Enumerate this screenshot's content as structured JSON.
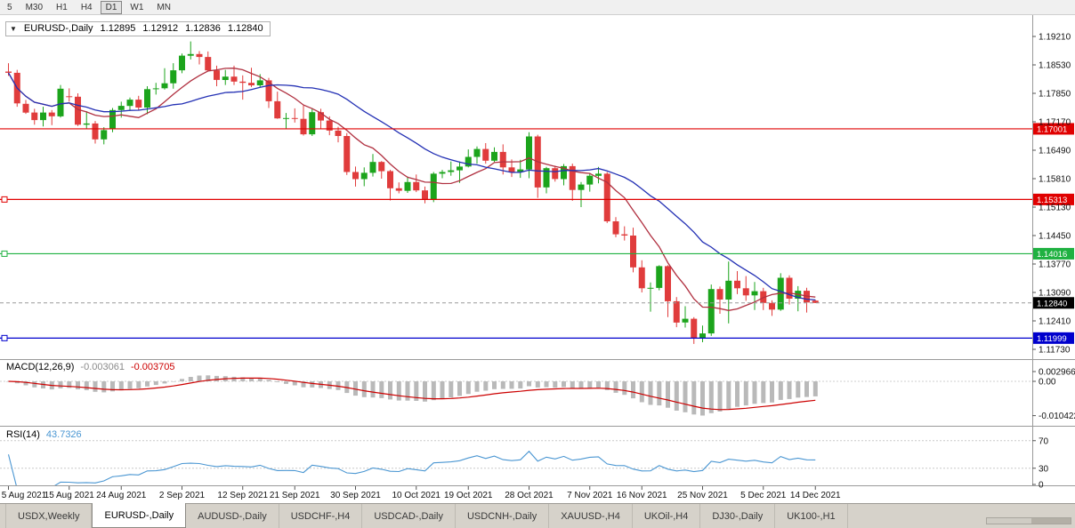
{
  "toolbar": {
    "timeframes": [
      {
        "label": "5",
        "active": false
      },
      {
        "label": "M30",
        "active": false
      },
      {
        "label": "H1",
        "active": false
      },
      {
        "label": "H4",
        "active": false
      },
      {
        "label": "D1",
        "active": true
      },
      {
        "label": "W1",
        "active": false
      },
      {
        "label": "MN",
        "active": false
      }
    ]
  },
  "chart_header": {
    "collapse_icon": "▼",
    "symbol": "EURUSD-,Daily",
    "open": "1.12895",
    "high": "1.12912",
    "low": "1.12836",
    "close": "1.12840"
  },
  "colors": {
    "candle_up": "#1ca41c",
    "candle_down": "#e03c3c",
    "macd_histogram": "#b9b9b9",
    "macd_signal": "#cc0000",
    "rsi_line": "#4a96d2",
    "axis_text": "#111111",
    "current_price_bg": "#000000"
  },
  "chart_data": {
    "type": "candlestick",
    "symbol": "EURUSD-,Daily",
    "candles": [
      [
        1.1837,
        1.1857,
        1.1827,
        1.1834
      ],
      [
        1.1834,
        1.1841,
        1.1753,
        1.1761
      ],
      [
        1.176,
        1.1769,
        1.1736,
        1.1739
      ],
      [
        1.1739,
        1.1748,
        1.171,
        1.1721
      ],
      [
        1.1721,
        1.1753,
        1.1706,
        1.1739
      ],
      [
        1.1739,
        1.1745,
        1.1709,
        1.173
      ],
      [
        1.173,
        1.1805,
        1.1727,
        1.1796
      ],
      [
        1.1778,
        1.1797,
        1.1765,
        1.1777
      ],
      [
        1.1777,
        1.1785,
        1.1707,
        1.171
      ],
      [
        1.171,
        1.1742,
        1.1701,
        1.1713
      ],
      [
        1.1713,
        1.1719,
        1.1665,
        1.1675
      ],
      [
        1.1675,
        1.1704,
        1.1663,
        1.1697
      ],
      [
        1.17,
        1.175,
        1.1692,
        1.1745
      ],
      [
        1.1745,
        1.1765,
        1.1727,
        1.1755
      ],
      [
        1.1755,
        1.1775,
        1.1743,
        1.177
      ],
      [
        1.177,
        1.1779,
        1.1745,
        1.1751
      ],
      [
        1.1751,
        1.1802,
        1.1735,
        1.1795
      ],
      [
        1.1795,
        1.181,
        1.1782,
        1.1797
      ],
      [
        1.1797,
        1.1845,
        1.1794,
        1.1809
      ],
      [
        1.1809,
        1.1857,
        1.1796,
        1.184
      ],
      [
        1.184,
        1.188,
        1.1833,
        1.1875
      ],
      [
        1.1875,
        1.1909,
        1.1866,
        1.1879
      ],
      [
        1.1879,
        1.1886,
        1.1854,
        1.1872
      ],
      [
        1.1872,
        1.1885,
        1.1837,
        1.184
      ],
      [
        1.184,
        1.1851,
        1.1802,
        1.1817
      ],
      [
        1.1817,
        1.1841,
        1.1805,
        1.1825
      ],
      [
        1.1825,
        1.1851,
        1.1805,
        1.1813
      ],
      [
        1.1813,
        1.1828,
        1.177,
        1.181
      ],
      [
        1.181,
        1.1846,
        1.18,
        1.1804
      ],
      [
        1.1804,
        1.1831,
        1.1799,
        1.1816
      ],
      [
        1.1816,
        1.1822,
        1.175,
        1.1766
      ],
      [
        1.1766,
        1.1789,
        1.1724,
        1.1725
      ],
      [
        1.1725,
        1.1738,
        1.17,
        1.1726
      ],
      [
        1.1726,
        1.1749,
        1.1715,
        1.1724
      ],
      [
        1.1724,
        1.1756,
        1.1684,
        1.1687
      ],
      [
        1.1687,
        1.175,
        1.1683,
        1.174
      ],
      [
        1.174,
        1.1748,
        1.1701,
        1.172
      ],
      [
        1.172,
        1.173,
        1.1685,
        1.1696
      ],
      [
        1.1696,
        1.1705,
        1.1668,
        1.1683
      ],
      [
        1.1683,
        1.169,
        1.159,
        1.1597
      ],
      [
        1.1597,
        1.161,
        1.1562,
        1.158
      ],
      [
        1.158,
        1.1608,
        1.1563,
        1.1595
      ],
      [
        1.1595,
        1.164,
        1.1586,
        1.1621
      ],
      [
        1.1621,
        1.1623,
        1.1581,
        1.1599
      ],
      [
        1.1599,
        1.1602,
        1.1529,
        1.1558
      ],
      [
        1.1558,
        1.1572,
        1.1546,
        1.1552
      ],
      [
        1.1552,
        1.1586,
        1.1547,
        1.1573
      ],
      [
        1.1573,
        1.1591,
        1.1549,
        1.1553
      ],
      [
        1.1553,
        1.1562,
        1.1522,
        1.153
      ],
      [
        1.153,
        1.1597,
        1.1525,
        1.1593
      ],
      [
        1.1593,
        1.1602,
        1.1582,
        1.1597
      ],
      [
        1.1597,
        1.1622,
        1.1588,
        1.1601
      ],
      [
        1.1601,
        1.1622,
        1.1571,
        1.161
      ],
      [
        1.161,
        1.1651,
        1.1608,
        1.1633
      ],
      [
        1.1633,
        1.1658,
        1.1617,
        1.1652
      ],
      [
        1.1652,
        1.1666,
        1.1617,
        1.1624
      ],
      [
        1.1624,
        1.1656,
        1.1621,
        1.1645
      ],
      [
        1.1645,
        1.1663,
        1.1591,
        1.1608
      ],
      [
        1.1608,
        1.1627,
        1.1585,
        1.1597
      ],
      [
        1.1597,
        1.1626,
        1.1583,
        1.1603
      ],
      [
        1.1603,
        1.1692,
        1.1582,
        1.1682
      ],
      [
        1.1682,
        1.1686,
        1.1535,
        1.156
      ],
      [
        1.156,
        1.1609,
        1.1546,
        1.1606
      ],
      [
        1.1606,
        1.1612,
        1.1574,
        1.158
      ],
      [
        1.158,
        1.1616,
        1.1565,
        1.1611
      ],
      [
        1.1611,
        1.1617,
        1.1528,
        1.1554
      ],
      [
        1.1554,
        1.1573,
        1.1513,
        1.1567
      ],
      [
        1.1567,
        1.1594,
        1.155,
        1.1588
      ],
      [
        1.1588,
        1.1609,
        1.157,
        1.1593
      ],
      [
        1.1593,
        1.1597,
        1.1475,
        1.1479
      ],
      [
        1.1479,
        1.1489,
        1.1441,
        1.1448
      ],
      [
        1.1448,
        1.1467,
        1.1433,
        1.1445
      ],
      [
        1.1445,
        1.1464,
        1.1357,
        1.1369
      ],
      [
        1.1369,
        1.1386,
        1.1309,
        1.1319
      ],
      [
        1.1319,
        1.1333,
        1.1263,
        1.132
      ],
      [
        1.132,
        1.1374,
        1.1314,
        1.1372
      ],
      [
        1.1372,
        1.1374,
        1.125,
        1.1288
      ],
      [
        1.1288,
        1.1298,
        1.1226,
        1.1237
      ],
      [
        1.1237,
        1.1276,
        1.1225,
        1.1246
      ],
      [
        1.1246,
        1.125,
        1.1186,
        1.1199
      ],
      [
        1.1199,
        1.123,
        1.119,
        1.1211
      ],
      [
        1.1211,
        1.1328,
        1.1205,
        1.1317
      ],
      [
        1.1317,
        1.1323,
        1.1258,
        1.1292
      ],
      [
        1.1292,
        1.1383,
        1.1235,
        1.1337
      ],
      [
        1.1337,
        1.136,
        1.1305,
        1.1319
      ],
      [
        1.1319,
        1.1348,
        1.1289,
        1.1302
      ],
      [
        1.1302,
        1.1334,
        1.1267,
        1.1312
      ],
      [
        1.1312,
        1.132,
        1.1267,
        1.1284
      ],
      [
        1.1284,
        1.129,
        1.1253,
        1.1268
      ],
      [
        1.1268,
        1.1355,
        1.1265,
        1.1344
      ],
      [
        1.1344,
        1.135,
        1.128,
        1.1294
      ],
      [
        1.1294,
        1.1324,
        1.1264,
        1.1313
      ],
      [
        1.1313,
        1.132,
        1.1261,
        1.1285
      ],
      [
        1.12895,
        1.12912,
        1.12836,
        1.1284
      ]
    ],
    "price_axis_ticks": [
      "1.19210",
      "1.18530",
      "1.17850",
      "1.17170",
      "1.16490",
      "1.15810",
      "1.15130",
      "1.14450",
      "1.13770",
      "1.13090",
      "1.12410",
      "1.11730"
    ],
    "horizontal_lines": [
      {
        "price": 1.17001,
        "label": "1.17001",
        "color": "#e00000",
        "handle": false
      },
      {
        "price": 1.15313,
        "label": "1.15313",
        "color": "#e00000",
        "handle": true
      },
      {
        "price": 1.14016,
        "label": "1.14016",
        "color": "#1fb141",
        "handle": true
      },
      {
        "price": 1.11999,
        "label": "1.11999",
        "color": "#0000cd",
        "handle": true
      }
    ],
    "current_price": {
      "value": 1.1284,
      "label": "1.12840"
    },
    "moving_averages": [
      {
        "name": "ma-fast",
        "period": 8,
        "color": "#b03040"
      },
      {
        "name": "ma-slow",
        "period": 20,
        "color": "#2330b4"
      }
    ],
    "macd": {
      "title": "MACD(12,26,9)",
      "fast": 12,
      "slow": 26,
      "signal": 9,
      "value": "-0.003061",
      "signal_value": "-0.003705",
      "axis_ticks": [
        {
          "v": 0.002966,
          "label": "0.002966"
        },
        {
          "v": 0,
          "label": "0.00"
        },
        {
          "v": -0.010422,
          "label": "-0.010422"
        }
      ]
    },
    "rsi": {
      "title": "RSI(14)",
      "period": 14,
      "value": "43.7326",
      "levels": [
        70,
        30
      ],
      "axis_ticks": [
        {
          "v": 70,
          "label": "70"
        },
        {
          "v": 30,
          "label": "30"
        },
        {
          "v": 0,
          "label": "0"
        }
      ]
    },
    "date_labels": [
      {
        "label": "5 Aug 2021",
        "index": 0
      },
      {
        "label": "15 Aug 2021",
        "index": 7
      },
      {
        "label": "24 Aug 2021",
        "index": 13
      },
      {
        "label": "2 Sep 2021",
        "index": 20
      },
      {
        "label": "12 Sep 2021",
        "index": 27
      },
      {
        "label": "21 Sep 2021",
        "index": 33
      },
      {
        "label": "30 Sep 2021",
        "index": 40
      },
      {
        "label": "10 Oct 2021",
        "index": 47
      },
      {
        "label": "19 Oct 2021",
        "index": 53
      },
      {
        "label": "28 Oct 2021",
        "index": 60
      },
      {
        "label": "7 Nov 2021",
        "index": 67
      },
      {
        "label": "16 Nov 2021",
        "index": 73
      },
      {
        "label": "25 Nov 2021",
        "index": 80
      },
      {
        "label": "5 Dec 2021",
        "index": 87
      },
      {
        "label": "14 Dec 2021",
        "index": 93
      }
    ]
  },
  "tabs": [
    {
      "label": "USDX,Weekly",
      "active": false
    },
    {
      "label": "EURUSD-,Daily",
      "active": true
    },
    {
      "label": "AUDUSD-,Daily",
      "active": false
    },
    {
      "label": "USDCHF-,H4",
      "active": false
    },
    {
      "label": "USDCAD-,Daily",
      "active": false
    },
    {
      "label": "USDCNH-,Daily",
      "active": false
    },
    {
      "label": "XAUUSD-,H4",
      "active": false
    },
    {
      "label": "UKOil-,H4",
      "active": false
    },
    {
      "label": "DJ30-,Daily",
      "active": false
    },
    {
      "label": "UK100-,H1",
      "active": false
    }
  ]
}
